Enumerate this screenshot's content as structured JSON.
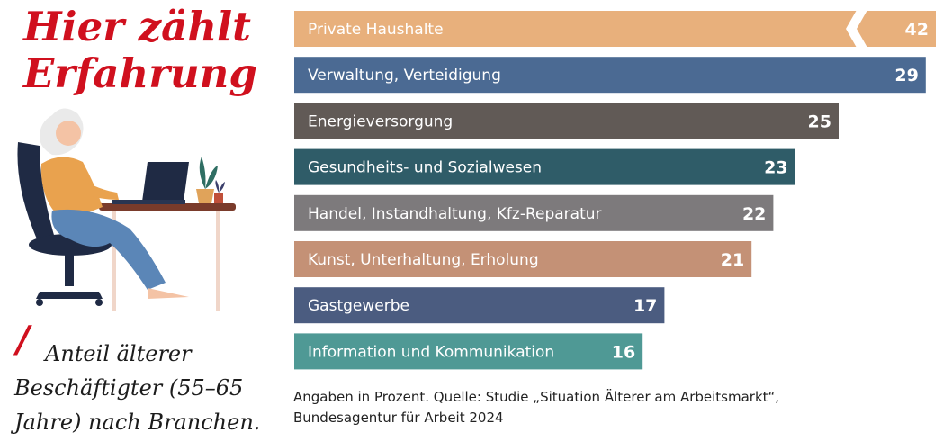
{
  "title": {
    "line1": "Hier zählt",
    "line2": "Erfahrung"
  },
  "subtitle": "Anteil älterer Beschäftigter (55–65 Jahre) nach Branchen.",
  "slash_glyph": "/",
  "source_line1": "Angaben in Prozent. Quelle: Studie „Situation Älterer am Arbeitsmarkt“,",
  "source_line2": "Bundesagentur für Arbeit 2024",
  "colors": {
    "accent": "#d0101e",
    "bars": [
      "#e8b07c",
      "#4b6a93",
      "#615a56",
      "#2f5c68",
      "#7d7a7c",
      "#c49176",
      "#4b5c80",
      "#4f9995"
    ]
  },
  "illustration_icon": "woman-at-laptop-illustration",
  "chart_data": {
    "type": "bar",
    "orientation": "horizontal",
    "categories": [
      "Private Haushalte",
      "Verwaltung, Verteidigung",
      "Energieversorgung",
      "Gesundheits- und Sozialwesen",
      "Handel, Instandhaltung, Kfz-Reparatur",
      "Kunst, Unterhaltung, Erholung",
      "Gastgewerbe",
      "Information und Kommunikation"
    ],
    "values": [
      42,
      29,
      25,
      23,
      22,
      21,
      17,
      16
    ],
    "value_labels": [
      "42",
      "29",
      "25",
      "23",
      "22",
      "21",
      "17",
      "16"
    ],
    "axis_break_on": "Private Haushalte",
    "xlim": [
      0,
      42
    ],
    "grid": false,
    "legend": "none"
  }
}
